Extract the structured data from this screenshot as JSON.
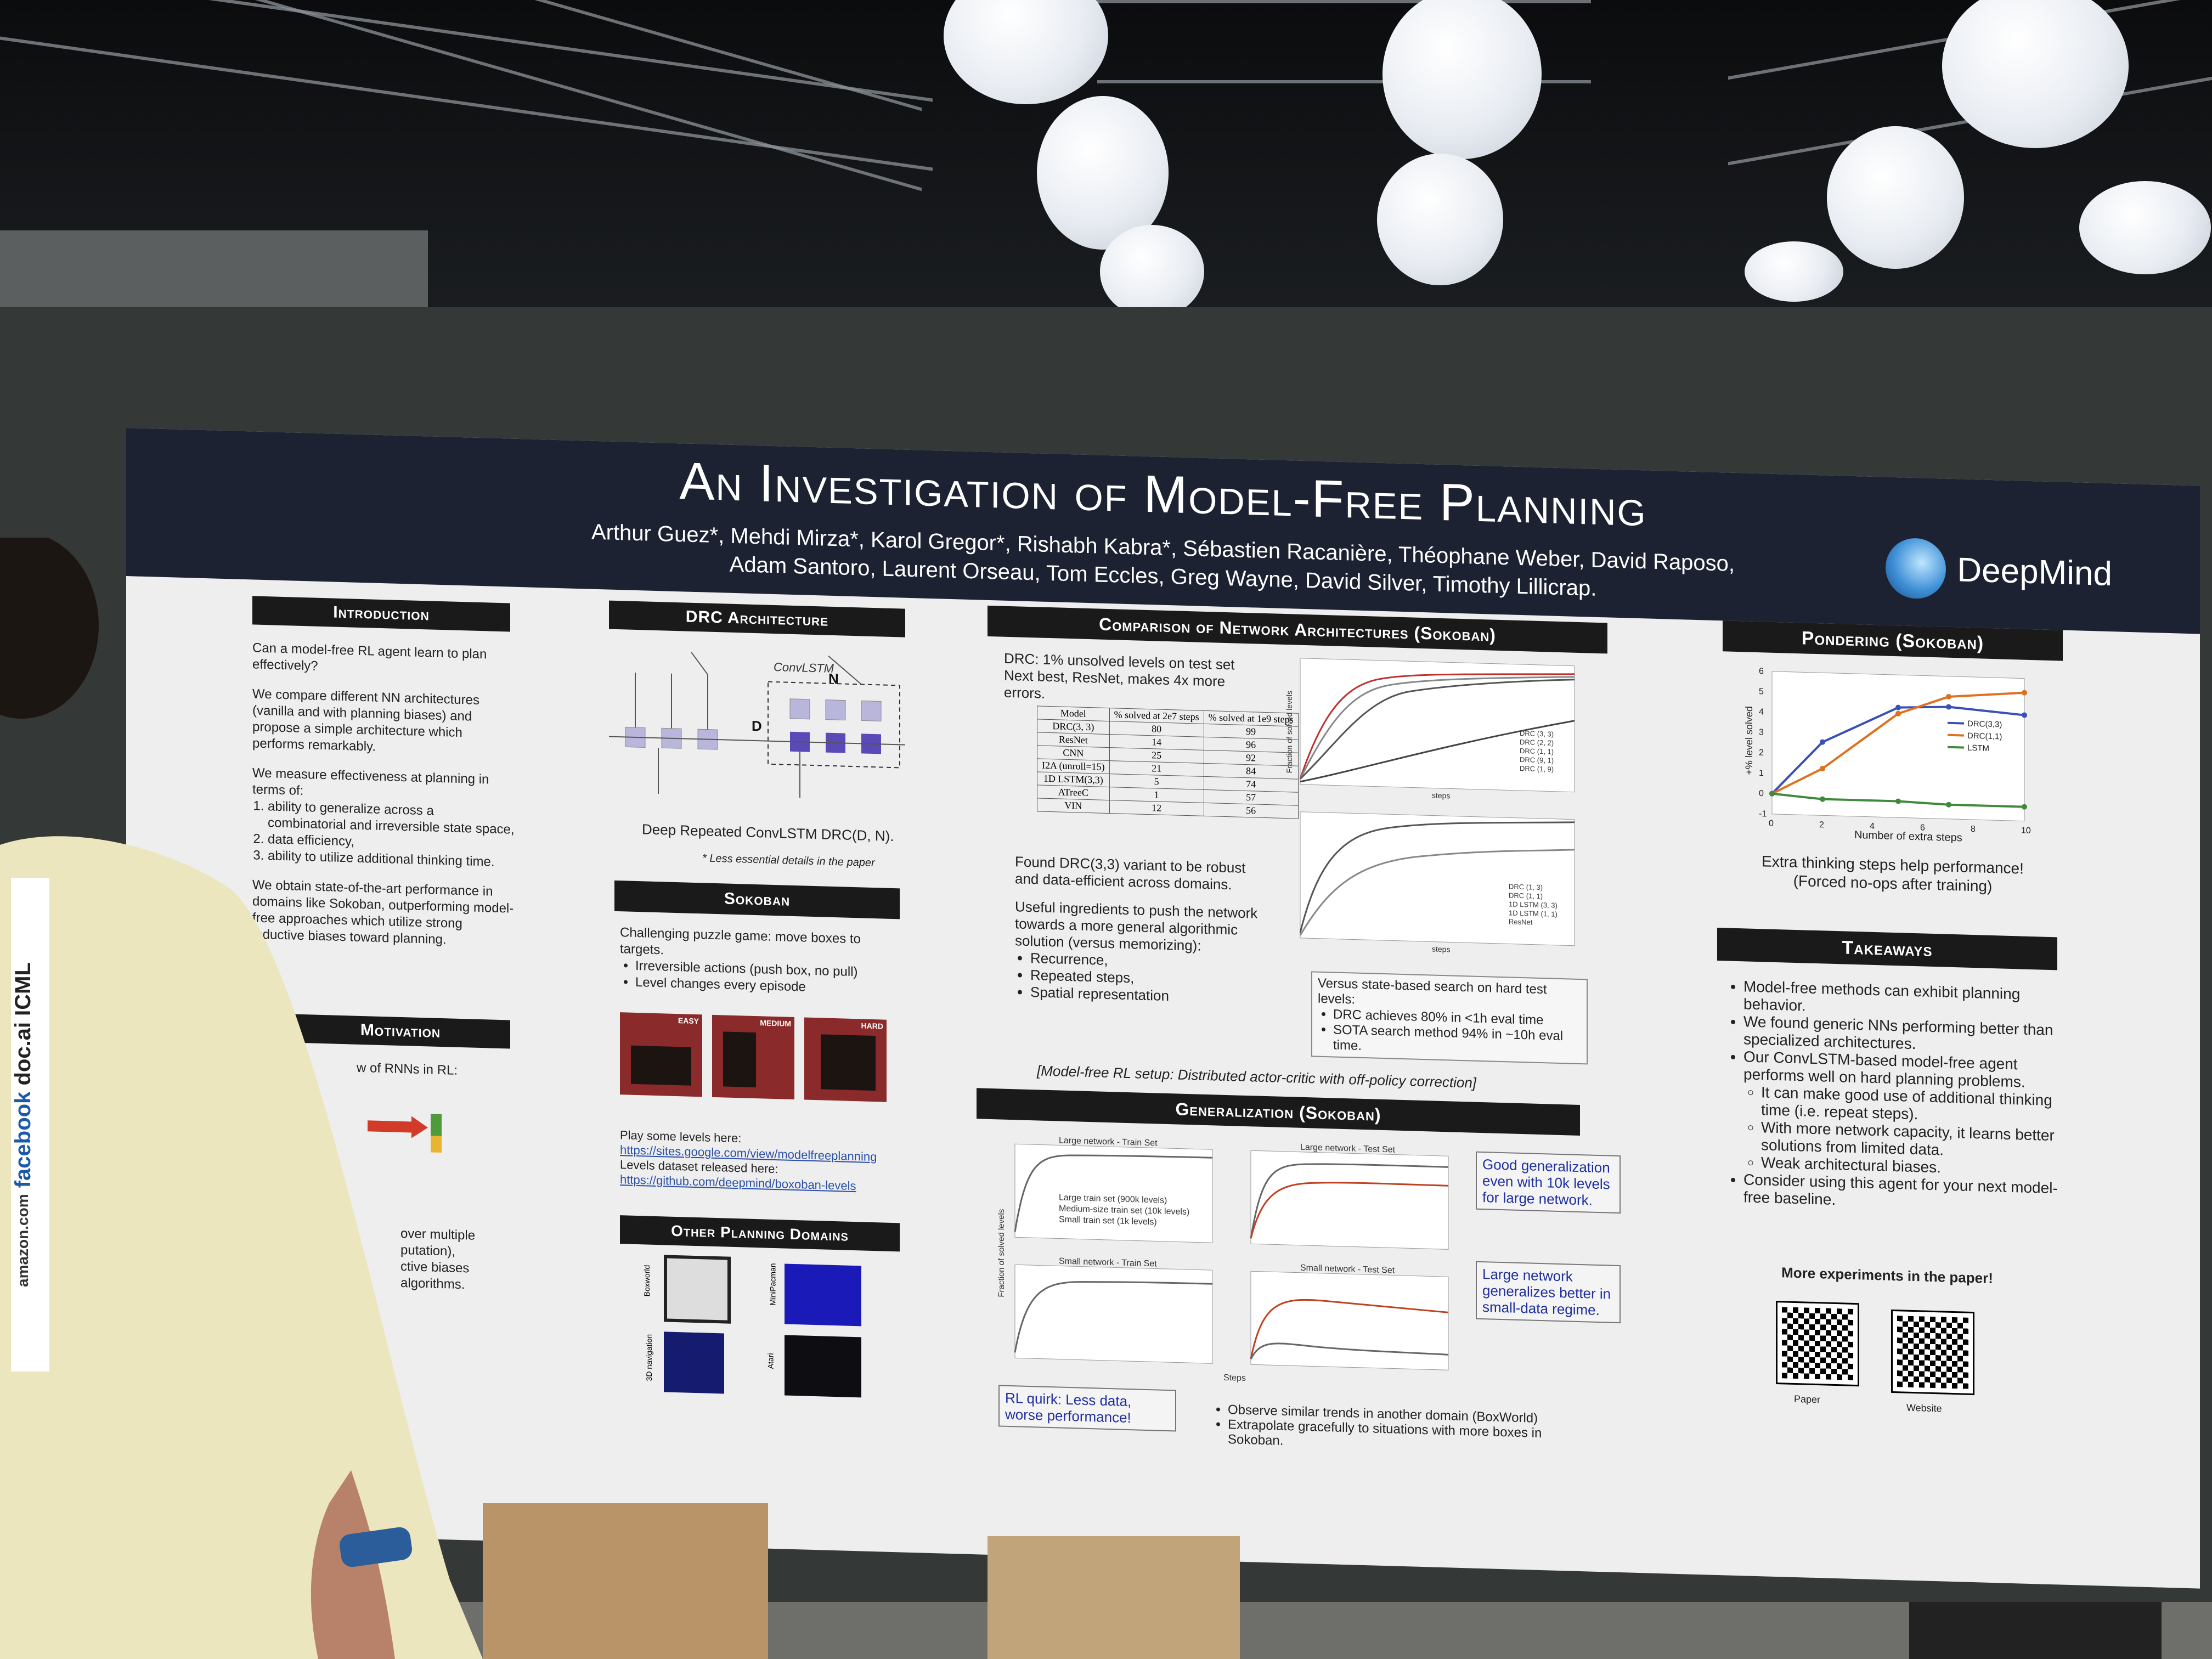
{
  "poster": {
    "title": "An Investigation of Model-Free Planning",
    "authors_line1": "Arthur Guez*, Mehdi Mirza*, Karol Gregor*, Rishabh Kabra*, Sébastien Racanière, Théophane Weber, David Raposo,",
    "authors_line2": "Adam Santoro, Laurent Orseau, Tom Eccles, Greg Wayne, David Silver, Timothy Lillicrap.",
    "logo": "DeepMind",
    "logo_icon": "deepmind-logo-icon"
  },
  "intro": {
    "header": "Introduction",
    "p1": "Can a model-free RL agent learn to plan effectively?",
    "p2": "We compare different NN architectures (vanilla and with planning biases) and propose a simple architecture which performs remarkably.",
    "p3": "We measure effectiveness at planning in terms of:",
    "items": [
      "ability to generalize across a combinatorial and irreversible state space,",
      "data efficiency,",
      "ability to utilize additional thinking time."
    ],
    "p4": "We obtain state-of-the-art performance in domains like Sokoban, outperforming model-free approaches which utilize strong inductive biases toward planning."
  },
  "motivation": {
    "header": "Motivation",
    "p1": "w of RNNs in RL:",
    "p2": "over multiple",
    "p3": "putation),",
    "p4": "ctive biases",
    "p5": "algorithms."
  },
  "drc": {
    "header": "DRC Architecture",
    "convlstm_label": "ConvLSTM",
    "n_label": "N",
    "d_label": "D",
    "caption": "Deep Repeated ConvLSTM DRC(D, N).",
    "note": "* Less essential details in the paper"
  },
  "sokoban": {
    "header": "Sokoban",
    "p1": "Challenging puzzle game: move boxes to targets.",
    "items": [
      "Irreversible actions (push box, no pull)",
      "Level changes every episode"
    ],
    "levels": [
      "EASY",
      "MEDIUM",
      "HARD"
    ],
    "play_text": "Play some levels here:",
    "play_link": "https://sites.google.com/view/modelfreeplanning",
    "dataset_text": "Levels dataset released here:",
    "dataset_link": "https://github.com/deepmind/boxoban-levels"
  },
  "other": {
    "header": "Other Planning Domains",
    "labels": [
      "Boxworld",
      "MiniPacman",
      "3D navigation",
      "Atari"
    ]
  },
  "comparison": {
    "header": "Comparison of Network Architectures (Sokoban)",
    "p1": "DRC: 1% unsolved levels on test set",
    "p2": "Next best, ResNet, makes 4x more errors.",
    "table_head": [
      "Model",
      "% solved at 2e7 steps",
      "% solved at 1e9 steps"
    ],
    "table_rows": [
      [
        "DRC(3, 3)",
        "80",
        "99"
      ],
      [
        "ResNet",
        "14",
        "96"
      ],
      [
        "CNN",
        "25",
        "92"
      ],
      [
        "I2A (unroll=15)",
        "21",
        "84"
      ],
      [
        "1D LSTM(3,3)",
        "5",
        "74"
      ],
      [
        "ATreeC",
        "1",
        "57"
      ],
      [
        "VIN",
        "12",
        "56"
      ]
    ],
    "p3": "Found DRC(3,3) variant to be robust and data-efficient across domains.",
    "p4": "Useful ingredients to push the network towards a more general algorithmic solution (versus memorizing):",
    "ingredients": [
      "Recurrence,",
      "Repeated steps,",
      "Spatial representation"
    ],
    "plot_ylabel": "Fraction of solved levels",
    "plot_xlabel": "steps",
    "legend_top": [
      "DRC (3, 3)",
      "DRC (2, 2)",
      "DRC (1, 1)",
      "DRC (9, 1)",
      "DRC (1, 9)"
    ],
    "legend_bottom": [
      "DRC (1, 3)",
      "DRC (1, 1)",
      "1D LSTM (3, 3)",
      "1D LSTM (1, 1)",
      "ResNet"
    ],
    "search_box_title": "Versus state-based search on hard test levels:",
    "search_items": [
      "DRC achieves 80% in <1h eval time",
      "SOTA search method 94% in ~10h eval time."
    ],
    "setup": "[Model-free RL setup: Distributed actor-critic with off-policy correction]"
  },
  "generalization": {
    "header": "Generalization (Sokoban)",
    "panels": [
      "Large network - Train Set",
      "Large network - Test Set",
      "Small network - Train Set",
      "Small network - Test Set"
    ],
    "legend": [
      "Large train set (900k levels)",
      "Medium-size train set (10k levels)",
      "Small train set (1k levels)"
    ],
    "ylabel": "Fraction of solved levels",
    "xlabel": "Steps",
    "callout1": "Good generalization even with 10k levels for large network.",
    "callout2": "Large network generalizes better in small-data regime.",
    "callout3": "RL quirk: Less data, worse performance!",
    "bullets": [
      "Observe similar trends in another domain (BoxWorld)",
      "Extrapolate gracefully to situations with more boxes in Sokoban."
    ]
  },
  "pondering": {
    "header": "Pondering (Sokoban)",
    "chart_data": {
      "type": "line",
      "xlabel": "Number of extra steps",
      "ylabel": "+% level solved",
      "x": [
        0,
        2,
        5,
        7,
        10
      ],
      "ylim": [
        -1,
        6
      ],
      "series": [
        {
          "name": "DRC(3,3)",
          "values": [
            0,
            2.6,
            4.4,
            4.5,
            4.2
          ],
          "color": "#3a4fb8"
        },
        {
          "name": "DRC(1,1)",
          "values": [
            0,
            1.3,
            4.1,
            5.0,
            5.3
          ],
          "color": "#e0701e"
        },
        {
          "name": "LSTM",
          "values": [
            0,
            -0.2,
            -0.2,
            -0.3,
            -0.3
          ],
          "color": "#3f8a3a"
        }
      ]
    },
    "ticks_y": [
      "6",
      "5",
      "4",
      "3",
      "2",
      "1",
      "0",
      "-1"
    ],
    "ticks_x": [
      "0",
      "2",
      "4",
      "6",
      "8",
      "10"
    ],
    "caption1": "Extra thinking steps help performance!",
    "caption2": "(Forced no-ops after training)"
  },
  "takeaways": {
    "header": "Takeaways",
    "items": [
      "Model-free methods can exhibit planning behavior.",
      "We found generic NNs performing better than specialized architectures.",
      "Our ConvLSTM-based model-free agent performs well on hard planning problems."
    ],
    "subitems": [
      "It can make good use of additional thinking time (i.e. repeat steps).",
      "With more network capacity, it learns better solutions from limited data.",
      "Weak architectural biases."
    ],
    "last": "Consider using this agent for your next model-free baseline.",
    "more": "More experiments in the paper!",
    "qr_labels": [
      "Paper",
      "Website"
    ]
  },
  "badge": {
    "items": [
      "amazon.com",
      "facebook",
      "doc.ai",
      "ICML"
    ]
  }
}
